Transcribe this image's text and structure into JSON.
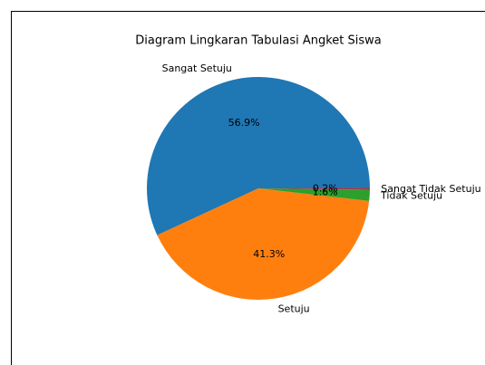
{
  "chart_data": {
    "type": "pie",
    "title": "Diagram Lingkaran Tabulasi Angket Siswa",
    "categories": [
      "Sangat Setuju",
      "Setuju",
      "Tidak Setuju",
      "Sangat Tidak Setuju"
    ],
    "values": [
      56.9,
      41.3,
      1.6,
      0.2
    ],
    "value_labels": [
      "56.9%",
      "41.3%",
      "1.6%",
      "0.2%"
    ],
    "colors": [
      "#1f77b4",
      "#ff7f0e",
      "#2ca02c",
      "#d62728"
    ]
  }
}
